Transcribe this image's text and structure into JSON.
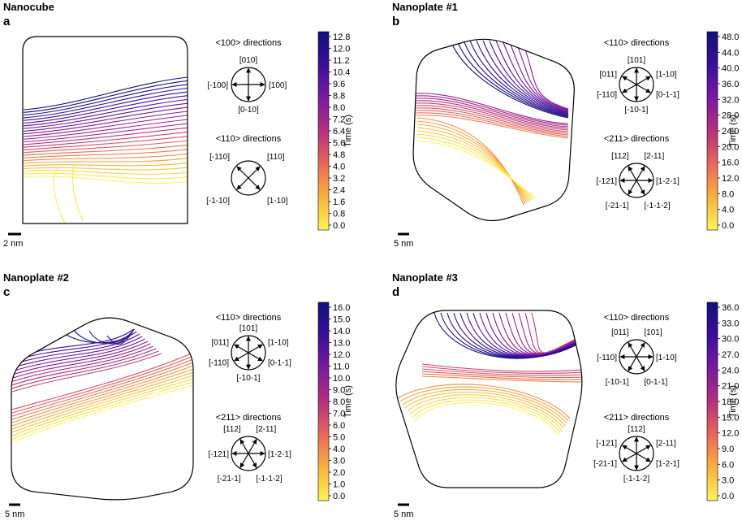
{
  "panels": [
    {
      "id": "a",
      "letter": "a",
      "title": "Nanocube",
      "scale_label": "2 nm",
      "shape": "square",
      "dirs1_title": "<100> directions",
      "dirs1_layout": "cross",
      "dirs1_labels": [
        "[010]",
        "[-100]",
        "[100]",
        "[0-10]"
      ],
      "dirs2_title": "<110> directions",
      "dirs2_layout": "x",
      "dirs2_labels": [
        "[-110]",
        "[110]",
        "[-1-10]",
        "[1-10]"
      ],
      "colorbar_label": "Time (s)",
      "ticks": [
        "12.8",
        "12.0",
        "11.2",
        "10.4",
        "9.6",
        "8.8",
        "8.0",
        "7.2",
        "6.4",
        "5.6",
        "4.8",
        "4.0",
        "3.2",
        "2.4",
        "1.6",
        "0.8",
        "0.0"
      ]
    },
    {
      "id": "b",
      "letter": "b",
      "title": "Nanoplate #1",
      "scale_label": "5 nm",
      "shape": "hex-pointy",
      "dirs1_title": "<110> directions",
      "dirs1_layout": "hex-vertical",
      "dirs1_labels": [
        "[101]",
        "[011]",
        "[1-10]",
        "[-110]",
        "[0-1-1]",
        "[-10-1]"
      ],
      "dirs2_title": "<211> directions",
      "dirs2_layout": "hex-horizontal",
      "dirs2_labels": [
        "[112]",
        "[2-11]",
        "[-121]",
        "[1-2-1]",
        "[-21-1]",
        "[-1-1-2]"
      ],
      "colorbar_label": "Time (s)",
      "ticks": [
        "48.0",
        "44.0",
        "40.0",
        "36.0",
        "32.0",
        "28.0",
        "24.0",
        "20.0",
        "16.0",
        "12.0",
        "8.0",
        "4.0",
        "0.0"
      ]
    },
    {
      "id": "c",
      "letter": "c",
      "title": "Nanoplate #2",
      "scale_label": "5 nm",
      "shape": "hex-pointy",
      "dirs1_title": "<110> directions",
      "dirs1_layout": "hex-vertical",
      "dirs1_labels": [
        "[101]",
        "[011]",
        "[1-10]",
        "[-110]",
        "[0-1-1]",
        "[-10-1]"
      ],
      "dirs2_title": "<211> directions",
      "dirs2_layout": "hex-horizontal",
      "dirs2_labels": [
        "[112]",
        "[2-11]",
        "[-121]",
        "[1-2-1]",
        "[-21-1]",
        "[-1-1-2]"
      ],
      "colorbar_label": "Time (s)",
      "ticks": [
        "16.0",
        "15.0",
        "14.0",
        "13.0",
        "12.0",
        "11.0",
        "10.0",
        "9.0",
        "8.0",
        "7.0",
        "6.0",
        "5.0",
        "4.0",
        "3.0",
        "2.0",
        "1.0",
        "0.0"
      ]
    },
    {
      "id": "d",
      "letter": "d",
      "title": "Nanoplate #3",
      "scale_label": "5 nm",
      "shape": "hex-flat",
      "dirs1_title": "<110> directions",
      "dirs1_layout": "hex-horizontal",
      "dirs1_labels": [
        "[011]",
        "[101]",
        "[-110]",
        "[1-10]",
        "[-10-1]",
        "[0-1-1]"
      ],
      "dirs2_title": "<211> directions",
      "dirs2_layout": "hex-vertical",
      "dirs2_labels": [
        "[112]",
        "[-121]",
        "[2-11]",
        "[-21-1]",
        "[1-2-1]",
        "[-1-1-2]"
      ],
      "colorbar_label": "Time (s)",
      "ticks": [
        "36.0",
        "33.0",
        "30.0",
        "27.0",
        "24.0",
        "21.0",
        "18.0",
        "15.0",
        "12.0",
        "9.0",
        "6.0",
        "3.0",
        "0.0"
      ]
    }
  ],
  "colormap": [
    "#fff35a",
    "#f9b13d",
    "#e8685a",
    "#b52f7e",
    "#7a1aa0",
    "#3a0f9c",
    "#12107a"
  ]
}
